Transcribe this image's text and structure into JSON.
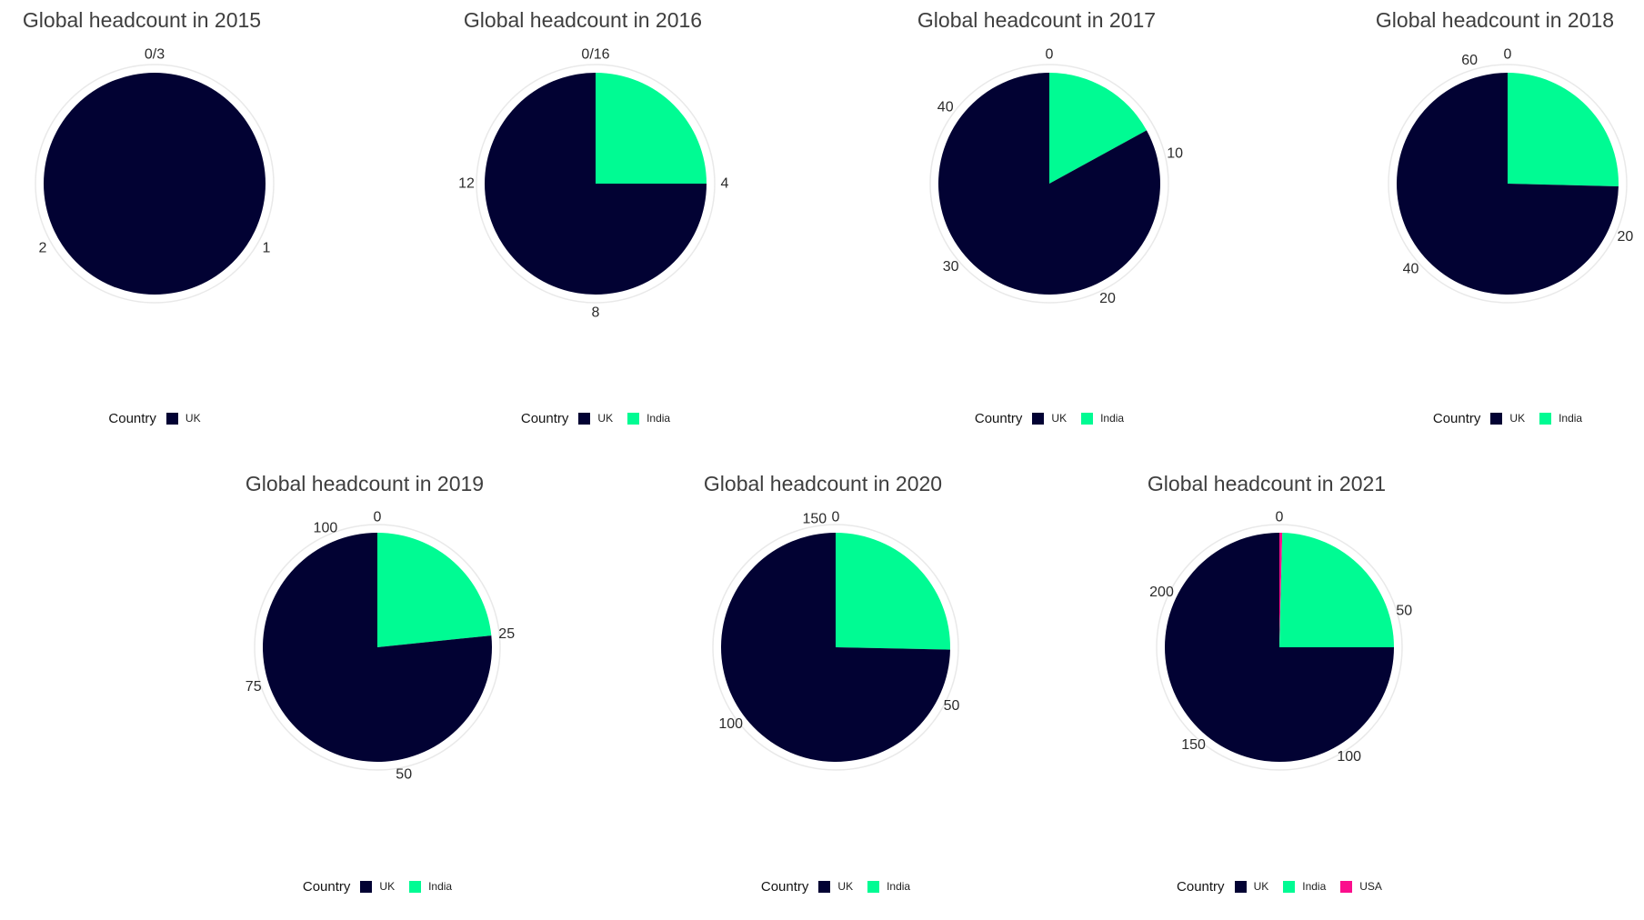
{
  "legend_title": "Country",
  "colors": {
    "UK": "#020233",
    "India": "#00fb93",
    "USA": "#fb0d8c"
  },
  "axis_color": "#e9e9e9",
  "chart_data": [
    {
      "type": "pie",
      "title": "Global headcount in 2015",
      "year": "2015",
      "total": 3,
      "series": [
        {
          "name": "UK",
          "value": 3
        }
      ],
      "ticks": [
        {
          "label": "0/3",
          "value": 0
        },
        {
          "label": "1",
          "value": 1
        },
        {
          "label": "2",
          "value": 2
        }
      ]
    },
    {
      "type": "pie",
      "title": "Global headcount in 2016",
      "year": "2016",
      "total": 16,
      "series": [
        {
          "name": "UK",
          "value": 12
        },
        {
          "name": "India",
          "value": 4
        }
      ],
      "ticks": [
        {
          "label": "0/16",
          "value": 0
        },
        {
          "label": "4",
          "value": 4
        },
        {
          "label": "8",
          "value": 8
        },
        {
          "label": "12",
          "value": 12
        }
      ]
    },
    {
      "type": "pie",
      "title": "Global headcount in 2017",
      "year": "2017",
      "total": 47,
      "series": [
        {
          "name": "UK",
          "value": 39
        },
        {
          "name": "India",
          "value": 8
        }
      ],
      "ticks": [
        {
          "label": "0",
          "value": 0
        },
        {
          "label": "10",
          "value": 10
        },
        {
          "label": "20",
          "value": 20
        },
        {
          "label": "30",
          "value": 30
        },
        {
          "label": "40",
          "value": 40
        }
      ]
    },
    {
      "type": "pie",
      "title": "Global headcount in 2018",
      "year": "2018",
      "total": 63,
      "series": [
        {
          "name": "UK",
          "value": 47
        },
        {
          "name": "India",
          "value": 16
        }
      ],
      "ticks": [
        {
          "label": "0",
          "value": 0
        },
        {
          "label": "20",
          "value": 20
        },
        {
          "label": "40",
          "value": 40
        },
        {
          "label": "60",
          "value": 60
        }
      ]
    },
    {
      "type": "pie",
      "title": "Global headcount in 2019",
      "year": "2019",
      "total": 107,
      "series": [
        {
          "name": "UK",
          "value": 82
        },
        {
          "name": "India",
          "value": 25
        }
      ],
      "ticks": [
        {
          "label": "0",
          "value": 0
        },
        {
          "label": "25",
          "value": 25
        },
        {
          "label": "50",
          "value": 50
        },
        {
          "label": "75",
          "value": 75
        },
        {
          "label": "100",
          "value": 100
        }
      ]
    },
    {
      "type": "pie",
      "title": "Global headcount in 2020",
      "year": "2020",
      "total": 154,
      "series": [
        {
          "name": "UK",
          "value": 115
        },
        {
          "name": "India",
          "value": 39
        }
      ],
      "ticks": [
        {
          "label": "0",
          "value": 0
        },
        {
          "label": "50",
          "value": 50
        },
        {
          "label": "100",
          "value": 100
        },
        {
          "label": "150",
          "value": 150
        }
      ]
    },
    {
      "type": "pie",
      "title": "Global headcount in 2021",
      "year": "2021",
      "total": 244,
      "series": [
        {
          "name": "UK",
          "value": 183
        },
        {
          "name": "India",
          "value": 60
        },
        {
          "name": "USA",
          "value": 1
        }
      ],
      "ticks": [
        {
          "label": "0",
          "value": 0
        },
        {
          "label": "50",
          "value": 50
        },
        {
          "label": "100",
          "value": 100
        },
        {
          "label": "150",
          "value": 150
        },
        {
          "label": "200",
          "value": 200
        }
      ]
    }
  ]
}
